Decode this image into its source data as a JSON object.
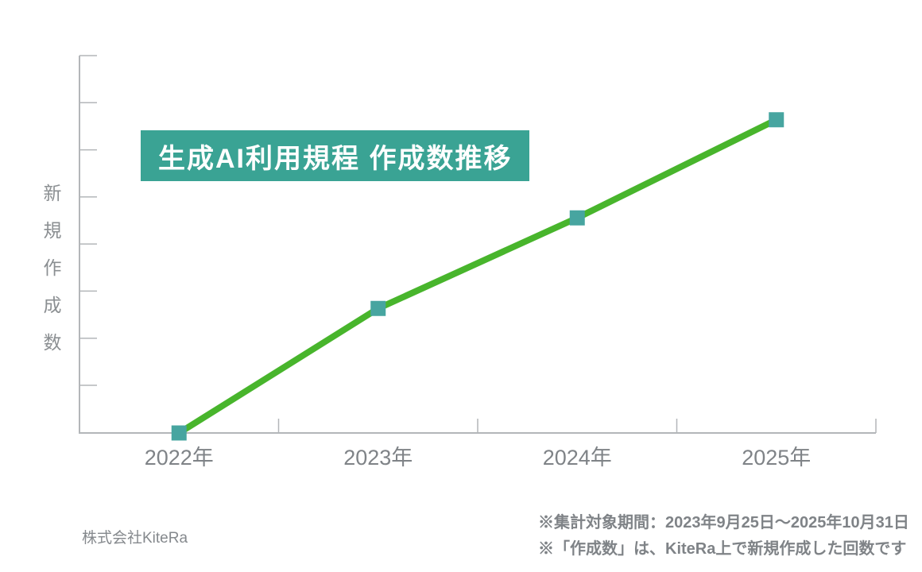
{
  "page": {
    "background_color": "#ffffff"
  },
  "title_badge": {
    "text": "生成AI利用規程 作成数推移",
    "bg_color": "#3aa394",
    "text_color": "#ffffff"
  },
  "y_axis": {
    "label": "新規作成数",
    "chars": [
      "新",
      "規",
      "作",
      "成",
      "数"
    ]
  },
  "footer": {
    "company": "株式会社KiteRa",
    "notes": [
      "※集計対象期間：2023年9月25日〜2025年10月31日",
      "※「作成数」は、KiteRa上で新規作成した回数です"
    ]
  },
  "chart_data": {
    "type": "line",
    "title": "生成AI利用規程 作成数推移",
    "categories": [
      "2022年",
      "2023年",
      "2024年",
      "2025年"
    ],
    "series": [
      {
        "name": "新規作成数",
        "values": [
          0,
          33,
          57,
          83
        ]
      }
    ],
    "xlabel": "",
    "ylabel": "新規作成数",
    "ylim": [
      0,
      100
    ],
    "y_tick_count": 8,
    "y_tick_labels": "none",
    "x_tick_style": "band-boundaries",
    "grid": false,
    "legend_position": "none",
    "line_color": "#48b52c",
    "line_width": 8,
    "marker": "square",
    "marker_size": 19,
    "marker_color": "#47a5a0",
    "axis_color": "#b3b6b9",
    "note": "y values are relative (0-100); chart displays no numeric y labels"
  }
}
